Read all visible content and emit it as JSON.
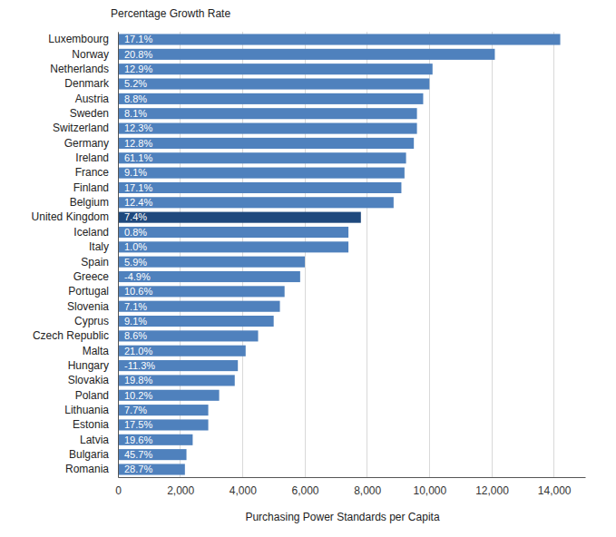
{
  "chart_data": {
    "type": "bar",
    "orientation": "horizontal",
    "grid": true,
    "title": "Percentage Growth Rate",
    "x_label": "Purchasing Power Standards per Capita",
    "categories": [
      "Luxembourg",
      "Norway",
      "Netherlands",
      "Denmark",
      "Austria",
      "Sweden",
      "Switzerland",
      "Germany",
      "Ireland",
      "France",
      "Finland",
      "Belgium",
      "United Kingdom",
      "Iceland",
      "Italy",
      "Spain",
      "Greece",
      "Portugal",
      "Slovenia",
      "Cyprus",
      "Czech Republic",
      "Malta",
      "Hungary",
      "Slovakia",
      "Poland",
      "Lithuania",
      "Estonia",
      "Latvia",
      "Bulgaria",
      "Romania"
    ],
    "values": [
      14200,
      12100,
      10100,
      10000,
      9800,
      9600,
      9600,
      9500,
      9250,
      9200,
      9100,
      8850,
      7800,
      7400,
      7400,
      6000,
      5850,
      5350,
      5200,
      5000,
      4500,
      4100,
      3850,
      3750,
      3250,
      2900,
      2900,
      2400,
      2200,
      2150
    ],
    "growth_labels": [
      "17.1%",
      "20.8%",
      "12.9%",
      "5.2%",
      "8.8%",
      "8.1%",
      "12.3%",
      "12.8%",
      "61.1%",
      "9.1%",
      "17.1%",
      "12.4%",
      "7.4%",
      "0.8%",
      "1.0%",
      "5.9%",
      "-4.9%",
      "10.6%",
      "7.1%",
      "9.1%",
      "8.6%",
      "21.0%",
      "-11.3%",
      "19.8%",
      "10.2%",
      "7.7%",
      "17.5%",
      "19.6%",
      "45.7%",
      "28.7%"
    ],
    "colors": [
      "#4f81bd",
      "#4f81bd",
      "#4f81bd",
      "#4f81bd",
      "#4f81bd",
      "#4f81bd",
      "#4f81bd",
      "#4f81bd",
      "#4f81bd",
      "#4f81bd",
      "#4f81bd",
      "#4f81bd",
      "#1f497d",
      "#4f81bd",
      "#4f81bd",
      "#4f81bd",
      "#4f81bd",
      "#4f81bd",
      "#4f81bd",
      "#4f81bd",
      "#4f81bd",
      "#4f81bd",
      "#4f81bd",
      "#4f81bd",
      "#4f81bd",
      "#4f81bd",
      "#4f81bd",
      "#4f81bd",
      "#4f81bd",
      "#4f81bd"
    ],
    "xlim": [
      0,
      15000
    ],
    "xticks": [
      0,
      {
        "value": 2000,
        "label": "2,000"
      },
      {
        "value": 4000,
        "label": "4,000"
      },
      {
        "value": 6000,
        "label": "6,000"
      },
      {
        "value": 8000,
        "label": "8,000"
      },
      {
        "value": 10000,
        "label": "10,000"
      },
      {
        "value": 12000,
        "label": "12,000"
      },
      {
        "value": 14000,
        "label": "14,000"
      }
    ]
  }
}
